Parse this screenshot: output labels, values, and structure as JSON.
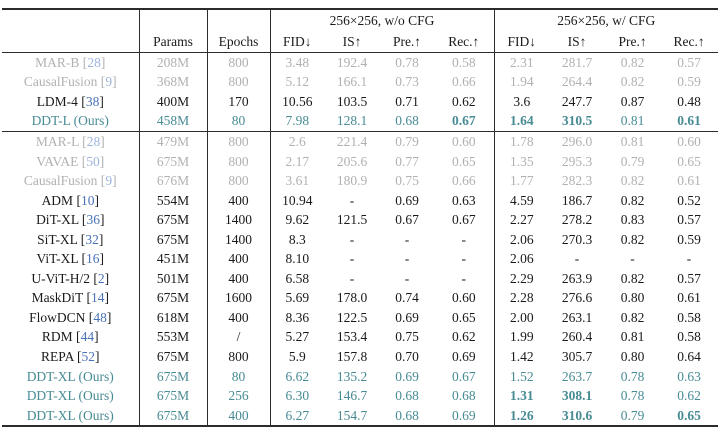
{
  "colors": {
    "highlight_teal": "#478b94",
    "deemphasized_gray": "#b1b1b4",
    "citation_blue": "#4a72b8",
    "text_black": "#1a1a1a"
  },
  "header": {
    "model": "",
    "params": "Params",
    "epochs": "Epochs",
    "group_wo_cfg": "256×256, w/o CFG",
    "group_w_cfg": "256×256, w/ CFG",
    "metrics": [
      "FID↓",
      "IS↑",
      "Pre.↑",
      "Rec.↑"
    ]
  },
  "rows": [
    {
      "name": "MAR-B",
      "cite": "28",
      "color": "gray",
      "params": "208M",
      "epochs": "800",
      "wo": [
        "3.48",
        "192.4",
        "0.78",
        "0.58"
      ],
      "w": [
        "2.31",
        "281.7",
        "0.82",
        "0.57"
      ]
    },
    {
      "name": "CausalFusion",
      "cite": "9",
      "color": "gray",
      "params": "368M",
      "epochs": "800",
      "wo": [
        "5.12",
        "166.1",
        "0.73",
        "0.66"
      ],
      "w": [
        "1.94",
        "264.4",
        "0.82",
        "0.59"
      ]
    },
    {
      "name": "LDM-4",
      "cite": "38",
      "color": "black",
      "params": "400M",
      "epochs": "170",
      "wo": [
        "10.56",
        "103.5",
        "0.71",
        "0.62"
      ],
      "w": [
        "3.6",
        "247.7",
        "0.87",
        "0.48"
      ]
    },
    {
      "name": "DDT-L (Ours)",
      "cite": null,
      "color": "teal",
      "params": "458M",
      "epochs": "80",
      "wo": [
        "7.98",
        "128.1",
        "0.68",
        "0.67"
      ],
      "w": [
        "1.64",
        "310.5",
        "0.81",
        "0.61"
      ],
      "wo_bold": [
        false,
        false,
        false,
        true
      ],
      "w_bold": [
        true,
        true,
        false,
        true
      ],
      "rule_after": true
    },
    {
      "name": "MAR-L",
      "cite": "28",
      "color": "gray",
      "params": "479M",
      "epochs": "800",
      "wo": [
        "2.6",
        "221.4",
        "0.79",
        "0.60"
      ],
      "w": [
        "1.78",
        "296.0",
        "0.81",
        "0.60"
      ]
    },
    {
      "name": "VAVAE",
      "cite": "50",
      "color": "gray",
      "params": "675M",
      "epochs": "800",
      "wo": [
        "2.17",
        "205.6",
        "0.77",
        "0.65"
      ],
      "w": [
        "1.35",
        "295.3",
        "0.79",
        "0.65"
      ]
    },
    {
      "name": "CausalFusion",
      "cite": "9",
      "color": "gray",
      "params": "676M",
      "epochs": "800",
      "wo": [
        "3.61",
        "180.9",
        "0.75",
        "0.66"
      ],
      "w": [
        "1.77",
        "282.3",
        "0.82",
        "0.61"
      ]
    },
    {
      "name": "ADM",
      "cite": "10",
      "color": "black",
      "params": "554M",
      "epochs": "400",
      "wo": [
        "10.94",
        "-",
        "0.69",
        "0.63"
      ],
      "w": [
        "4.59",
        "186.7",
        "0.82",
        "0.52"
      ]
    },
    {
      "name": "DiT-XL",
      "cite": "36",
      "color": "black",
      "params": "675M",
      "epochs": "1400",
      "wo": [
        "9.62",
        "121.5",
        "0.67",
        "0.67"
      ],
      "w": [
        "2.27",
        "278.2",
        "0.83",
        "0.57"
      ]
    },
    {
      "name": "SiT-XL",
      "cite": "32",
      "color": "black",
      "params": "675M",
      "epochs": "1400",
      "wo": [
        "8.3",
        "-",
        "-",
        "-"
      ],
      "w": [
        "2.06",
        "270.3",
        "0.82",
        "0.59"
      ]
    },
    {
      "name": "ViT-XL",
      "cite": "16",
      "color": "black",
      "params": "451M",
      "epochs": "400",
      "wo": [
        "8.10",
        "-",
        "-",
        "-"
      ],
      "w": [
        "2.06",
        "-",
        "-",
        "-"
      ]
    },
    {
      "name": "U-ViT-H/2",
      "cite": "2",
      "color": "black",
      "params": "501M",
      "epochs": "400",
      "wo": [
        "6.58",
        "-",
        "-",
        "-"
      ],
      "w": [
        "2.29",
        "263.9",
        "0.82",
        "0.57"
      ]
    },
    {
      "name": "MaskDiT",
      "cite": "14",
      "color": "black",
      "params": "675M",
      "epochs": "1600",
      "wo": [
        "5.69",
        "178.0",
        "0.74",
        "0.60"
      ],
      "w": [
        "2.28",
        "276.6",
        "0.80",
        "0.61"
      ]
    },
    {
      "name": "FlowDCN",
      "cite": "48",
      "color": "black",
      "params": "618M",
      "epochs": "400",
      "wo": [
        "8.36",
        "122.5",
        "0.69",
        "0.65"
      ],
      "w": [
        "2.00",
        "263.1",
        "0.82",
        "0.58"
      ]
    },
    {
      "name": "RDM",
      "cite": "44",
      "color": "black",
      "params": "553M",
      "epochs": "/",
      "wo": [
        "5.27",
        "153.4",
        "0.75",
        "0.62"
      ],
      "w": [
        "1.99",
        "260.4",
        "0.81",
        "0.58"
      ]
    },
    {
      "name": "REPA",
      "cite": "52",
      "color": "black",
      "params": "675M",
      "epochs": "800",
      "wo": [
        "5.9",
        "157.8",
        "0.70",
        "0.69"
      ],
      "w": [
        "1.42",
        "305.7",
        "0.80",
        "0.64"
      ]
    },
    {
      "name": "DDT-XL (Ours)",
      "cite": null,
      "color": "teal",
      "params": "675M",
      "epochs": "80",
      "wo": [
        "6.62",
        "135.2",
        "0.69",
        "0.67"
      ],
      "w": [
        "1.52",
        "263.7",
        "0.78",
        "0.63"
      ]
    },
    {
      "name": "DDT-XL (Ours)",
      "cite": null,
      "color": "teal",
      "params": "675M",
      "epochs": "256",
      "wo": [
        "6.30",
        "146.7",
        "0.68",
        "0.68"
      ],
      "w": [
        "1.31",
        "308.1",
        "0.78",
        "0.62"
      ],
      "w_bold": [
        true,
        true,
        false,
        false
      ]
    },
    {
      "name": "DDT-XL (Ours)",
      "cite": null,
      "color": "teal",
      "params": "675M",
      "epochs": "400",
      "wo": [
        "6.27",
        "154.7",
        "0.68",
        "0.69"
      ],
      "w": [
        "1.26",
        "310.6",
        "0.79",
        "0.65"
      ],
      "w_bold": [
        true,
        true,
        false,
        true
      ]
    }
  ]
}
